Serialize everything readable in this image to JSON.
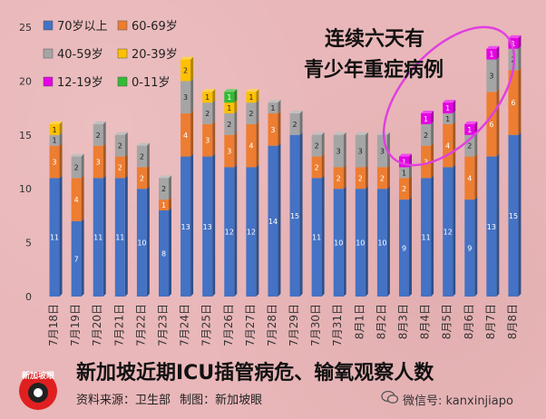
{
  "chart_data": {
    "type": "bar",
    "stacked": true,
    "title": "新加坡近期ICU插管病危、输氧观察人数",
    "annotation": [
      "连续六天有",
      "青少年重症病例"
    ],
    "categories": [
      "7月18日",
      "7月19日",
      "7月20日",
      "7月21日",
      "7月22日",
      "7月23日",
      "7月24日",
      "7月25日",
      "7月26日",
      "7月27日",
      "7月28日",
      "7月29日",
      "7月30日",
      "7月31日",
      "8月1日",
      "8月2日",
      "8月3日",
      "8月4日",
      "8月5日",
      "8月6日",
      "8月7日",
      "8月8日"
    ],
    "ylim": [
      0,
      25
    ],
    "yticks": [
      0,
      5,
      10,
      15,
      20,
      25
    ],
    "legend_position": "top-left",
    "grid": false,
    "series": [
      {
        "name": "70岁以上",
        "color": "#4472c4",
        "values": [
          11,
          7,
          11,
          11,
          10,
          8,
          13,
          13,
          12,
          12,
          14,
          15,
          11,
          10,
          10,
          10,
          9,
          11,
          12,
          9,
          13,
          15
        ]
      },
      {
        "name": "60-69岁",
        "color": "#ed7d31",
        "values": [
          3,
          4,
          3,
          2,
          2,
          1,
          4,
          3,
          3,
          4,
          3,
          0,
          2,
          2,
          2,
          2,
          2,
          3,
          4,
          4,
          6,
          6
        ]
      },
      {
        "name": "40-59岁",
        "color": "#a5a5a5",
        "values": [
          1,
          2,
          2,
          2,
          2,
          2,
          3,
          2,
          2,
          2,
          1,
          2,
          2,
          3,
          3,
          3,
          1,
          2,
          1,
          2,
          3,
          2
        ]
      },
      {
        "name": "20-39岁",
        "color": "#ffc000",
        "values": [
          1,
          0,
          0,
          0,
          0,
          0,
          2,
          1,
          1,
          1,
          0,
          0,
          0,
          0,
          0,
          0,
          0,
          0,
          0,
          0,
          0,
          0
        ]
      },
      {
        "name": "12-19岁",
        "color": "#e600e6",
        "values": [
          0,
          0,
          0,
          0,
          0,
          0,
          0,
          0,
          0,
          0,
          0,
          0,
          0,
          0,
          0,
          0,
          1,
          1,
          1,
          1,
          1,
          1
        ]
      },
      {
        "name": "0-11岁",
        "color": "#33bb33",
        "values": [
          0,
          0,
          0,
          0,
          0,
          0,
          0,
          0,
          1,
          0,
          0,
          0,
          0,
          0,
          0,
          0,
          0,
          0,
          0,
          0,
          0,
          0
        ]
      }
    ],
    "label_colors": {
      "dark": "#ffffff",
      "light": "#222222"
    },
    "highlight_color": "#e040e0"
  },
  "footer": {
    "source_label": "资料来源：卫生部",
    "maker_label": "制图：新加坡眼",
    "credit": "微信号: kanxinjiapo",
    "logo_text": "新加坡眼"
  }
}
